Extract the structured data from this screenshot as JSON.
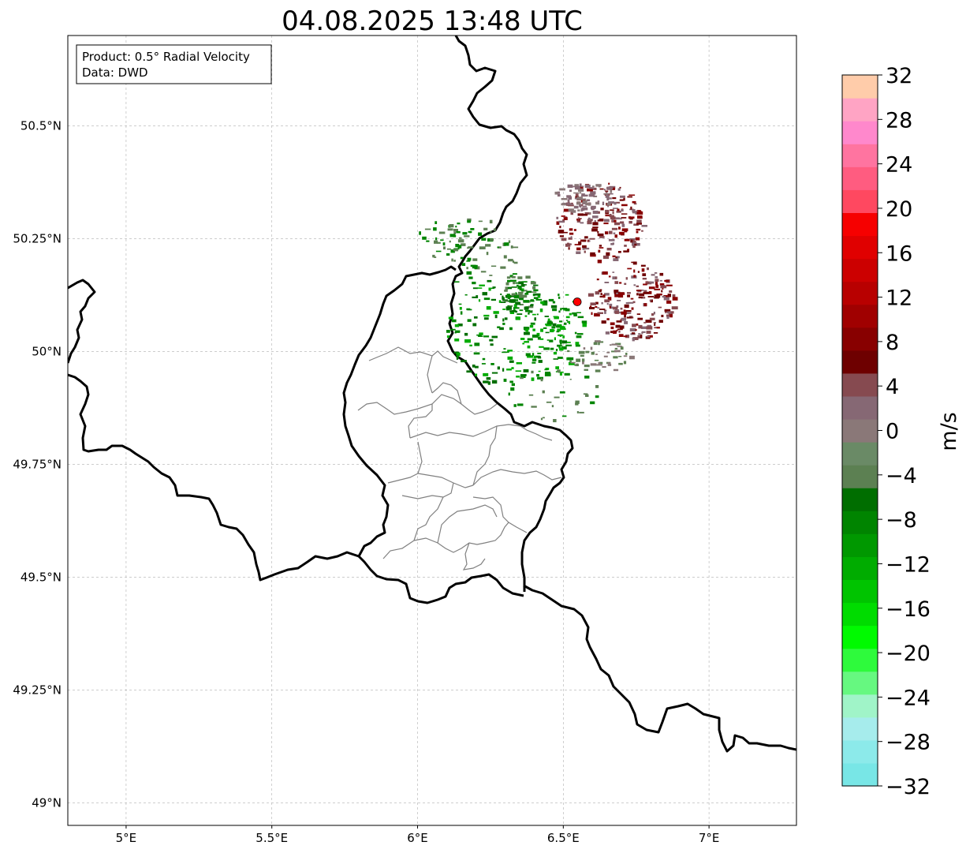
{
  "title": "04.08.2025 13:48 UTC",
  "info_box": {
    "line1": "Product: 0.5° Radial Velocity",
    "line2": "Data: DWD"
  },
  "map": {
    "lon_range": [
      4.8,
      7.3
    ],
    "lat_range": [
      48.95,
      50.7
    ],
    "x_ticks": [
      {
        "value": 5.0,
        "label": "5°E"
      },
      {
        "value": 5.5,
        "label": "5.5°E"
      },
      {
        "value": 6.0,
        "label": "6°E"
      },
      {
        "value": 6.5,
        "label": "6.5°E"
      },
      {
        "value": 7.0,
        "label": "7°E"
      }
    ],
    "y_ticks": [
      {
        "value": 49.0,
        "label": "49°N"
      },
      {
        "value": 49.25,
        "label": "49.25°N"
      },
      {
        "value": 49.5,
        "label": "49.5°N"
      },
      {
        "value": 49.75,
        "label": "49.75°N"
      },
      {
        "value": 50.0,
        "label": "50°N"
      },
      {
        "value": 50.25,
        "label": "50.25°N"
      },
      {
        "value": 50.5,
        "label": "50.5°N"
      }
    ],
    "radar_site": {
      "lon": 6.548,
      "lat": 50.11,
      "color": "#ff0000"
    },
    "grid": true
  },
  "colorbar": {
    "label": "m/s",
    "min": -32,
    "max": 32,
    "tick_labels": [
      "32",
      "28",
      "24",
      "20",
      "16",
      "12",
      "8",
      "4",
      "0",
      "−4",
      "−8",
      "−12",
      "−16",
      "−20",
      "−24",
      "−28",
      "−32"
    ],
    "colors_bottom_to_top": [
      "#78e6e6",
      "#8ceaea",
      "#a6ecec",
      "#a0f4c8",
      "#66f880",
      "#2efa3c",
      "#00fa00",
      "#00dc00",
      "#00c400",
      "#00ac00",
      "#009800",
      "#008400",
      "#006e00",
      "#5c8052",
      "#6a8a66",
      "#8a7878",
      "#866874",
      "#864a50",
      "#6e0000",
      "#880000",
      "#a00000",
      "#b80000",
      "#cc0000",
      "#e00000",
      "#f60000",
      "#ff4860",
      "#ff5c80",
      "#ff74a0",
      "#ff88cc",
      "#ffa4c4",
      "#ffccaa"
    ]
  },
  "velocity_colors": {
    "inbound_strong": "#006e00",
    "inbound_mid": "#008400",
    "inbound_light": "#00ac00",
    "near_zero_green": "#5c8052",
    "near_zero_gray": "#8a7878",
    "outbound_light": "#866874",
    "outbound_mid": "#864a50",
    "outbound_strong": "#880000",
    "outbound_dark": "#6e0000"
  }
}
